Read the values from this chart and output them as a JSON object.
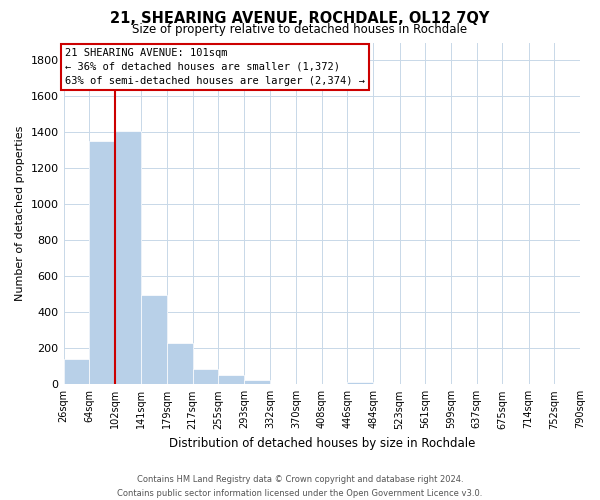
{
  "title": "21, SHEARING AVENUE, ROCHDALE, OL12 7QY",
  "subtitle": "Size of property relative to detached houses in Rochdale",
  "xlabel": "Distribution of detached houses by size in Rochdale",
  "ylabel": "Number of detached properties",
  "bar_edges": [
    26,
    64,
    102,
    141,
    179,
    217,
    255,
    293,
    332,
    370,
    408,
    446,
    484,
    523,
    561,
    599,
    637,
    675,
    714,
    752,
    790
  ],
  "bar_heights": [
    140,
    1350,
    1410,
    495,
    230,
    85,
    50,
    25,
    0,
    0,
    0,
    15,
    0,
    0,
    0,
    0,
    0,
    0,
    0,
    0
  ],
  "bar_color": "#b8d0e8",
  "property_line_x": 102,
  "annotation_title": "21 SHEARING AVENUE: 101sqm",
  "annotation_line1": "← 36% of detached houses are smaller (1,372)",
  "annotation_line2": "63% of semi-detached houses are larger (2,374) →",
  "ylim": [
    0,
    1900
  ],
  "yticks": [
    0,
    200,
    400,
    600,
    800,
    1000,
    1200,
    1400,
    1600,
    1800
  ],
  "tick_labels": [
    "26sqm",
    "64sqm",
    "102sqm",
    "141sqm",
    "179sqm",
    "217sqm",
    "255sqm",
    "293sqm",
    "332sqm",
    "370sqm",
    "408sqm",
    "446sqm",
    "484sqm",
    "523sqm",
    "561sqm",
    "599sqm",
    "637sqm",
    "675sqm",
    "714sqm",
    "752sqm",
    "790sqm"
  ],
  "footer_line1": "Contains HM Land Registry data © Crown copyright and database right 2024.",
  "footer_line2": "Contains public sector information licensed under the Open Government Licence v3.0.",
  "red_line_color": "#cc0000",
  "annotation_box_color": "#ffffff",
  "annotation_box_edge_color": "#cc0000",
  "background_color": "#ffffff",
  "grid_color": "#c8d8e8"
}
